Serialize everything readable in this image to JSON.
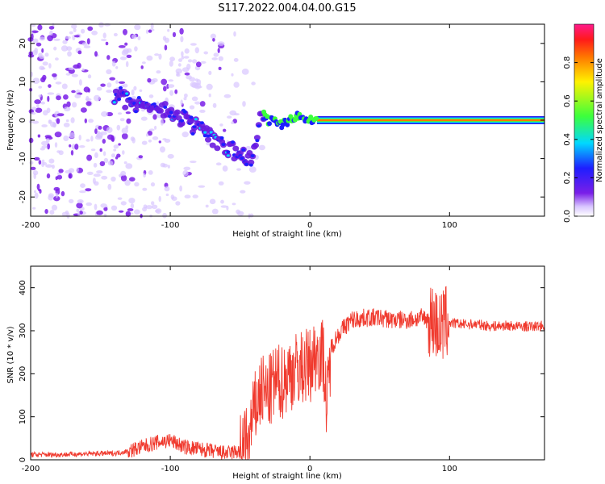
{
  "title": "S117.2022.004.04.00.G15",
  "colors": {
    "snr_line": "#f03a2e",
    "axis": "#000000"
  },
  "chart_data": [
    {
      "type": "heatmap",
      "xlabel": "Height of straight line (km)",
      "ylabel": "Frequency (Hz)",
      "colorbar_label": "Normalized spectral amplitude",
      "xlim": [
        -200,
        168
      ],
      "ylim": [
        -25,
        25
      ],
      "xticks": [
        -200,
        -100,
        0,
        100
      ],
      "yticks": [
        -20,
        -10,
        0,
        10,
        20
      ],
      "colorbar_ticks": [
        0.0,
        0.2,
        0.4,
        0.6,
        0.8
      ],
      "colorbar_range": [
        0,
        1
      ],
      "ridge": {
        "x": [
          -140,
          -120,
          -100,
          -80,
          -60,
          -50,
          -45,
          -40,
          -35,
          -30,
          -20,
          -10,
          0,
          10,
          50,
          90,
          100,
          168
        ],
        "y": [
          6,
          4,
          2,
          -2,
          -7,
          -9,
          -10,
          -9,
          3,
          0,
          -1,
          1,
          0,
          0,
          0,
          0,
          0,
          0
        ]
      }
    },
    {
      "type": "line",
      "xlabel": "Height of straight line (km)",
      "ylabel": "SNR (10 * v/v)",
      "xlim": [
        -200,
        168
      ],
      "ylim": [
        0,
        450
      ],
      "xticks": [
        -200,
        -100,
        0,
        100
      ],
      "yticks": [
        0,
        100,
        200,
        300,
        400
      ],
      "series": [
        {
          "x": [
            -200,
            -180,
            -160,
            -140,
            -130,
            -120,
            -110,
            -100,
            -90,
            -80,
            -70,
            -60,
            -50,
            -45,
            -40,
            -35,
            -30,
            -25,
            -20,
            -15,
            -10,
            -5,
            0,
            5,
            10,
            12,
            15,
            20,
            25,
            30,
            40,
            50,
            60,
            70,
            80,
            88,
            92,
            94,
            96,
            100,
            110,
            120,
            130,
            140,
            150,
            160,
            168
          ],
          "values": [
            12,
            12,
            14,
            15,
            20,
            30,
            40,
            45,
            30,
            25,
            20,
            15,
            20,
            40,
            110,
            160,
            150,
            180,
            180,
            200,
            210,
            215,
            220,
            250,
            240,
            110,
            260,
            290,
            310,
            325,
            330,
            330,
            325,
            325,
            330,
            325,
            310,
            300,
            320,
            318,
            315,
            315,
            310,
            312,
            310,
            310,
            312
          ]
        }
      ]
    }
  ]
}
